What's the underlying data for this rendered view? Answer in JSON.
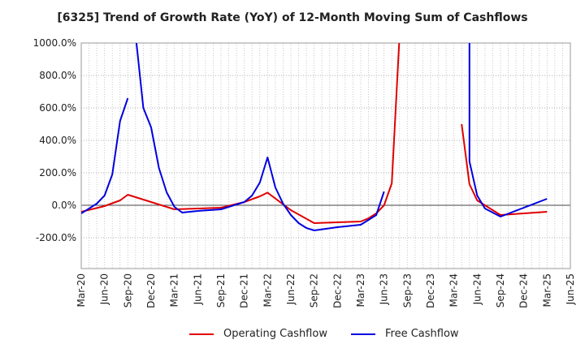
{
  "chart_data": {
    "type": "line",
    "title": "[6325]  Trend of Growth Rate (YoY) of 12-Month Moving Sum of Cashflows",
    "y_ticks": [
      "1000.0%",
      "800.0%",
      "600.0%",
      "400.0%",
      "200.0%",
      "0.0%",
      "-200.0%"
    ],
    "y_tick_values": [
      1000,
      800,
      600,
      400,
      200,
      0,
      -200
    ],
    "ylim": [
      -390,
      1000
    ],
    "x_ticks": [
      "Mar-20",
      "Jun-20",
      "Sep-20",
      "Dec-20",
      "Mar-21",
      "Jun-21",
      "Sep-21",
      "Dec-21",
      "Mar-22",
      "Jun-22",
      "Sep-22",
      "Dec-22",
      "Mar-23",
      "Jun-23",
      "Sep-23",
      "Dec-23",
      "Mar-24",
      "Jun-24",
      "Sep-24",
      "Dec-24",
      "Mar-25",
      "Jun-25"
    ],
    "x_range": [
      "2020-03",
      "2025-06"
    ],
    "grid": true,
    "legend_position": "bottom",
    "series": [
      {
        "name": "Operating Cashflow",
        "color": "#e00000",
        "points": [
          [
            "2020-03",
            -40
          ],
          [
            "2020-06",
            -5
          ],
          [
            "2020-08",
            30
          ],
          [
            "2020-09",
            65
          ],
          [
            "2020-12",
            20
          ],
          [
            "2021-03",
            -25
          ],
          [
            "2021-06",
            -20
          ],
          [
            "2021-09",
            -15
          ],
          [
            "2021-12",
            20
          ],
          [
            "2022-02",
            55
          ],
          [
            "2022-03",
            78
          ],
          [
            "2022-06",
            -30
          ],
          [
            "2022-09",
            -110
          ],
          [
            "2022-12",
            -105
          ],
          [
            "2023-03",
            -100
          ],
          [
            "2023-04",
            -80
          ],
          [
            "2023-05",
            -50
          ],
          [
            "2023-06",
            0
          ],
          [
            "2023-07",
            135
          ],
          [
            "2023-08",
            1050
          ],
          null,
          [
            "2024-04",
            500
          ],
          [
            "2024-05",
            130
          ],
          [
            "2024-06",
            30
          ],
          [
            "2024-09",
            -60
          ],
          [
            "2024-12",
            -50
          ],
          [
            "2025-03",
            -40
          ]
        ]
      },
      {
        "name": "Free Cashflow",
        "color": "#0000e0",
        "points": [
          [
            "2020-03",
            -50
          ],
          [
            "2020-05",
            10
          ],
          [
            "2020-06",
            60
          ],
          [
            "2020-07",
            190
          ],
          [
            "2020-08",
            520
          ],
          [
            "2020-09",
            660
          ],
          null,
          [
            "2020-10",
            1050
          ],
          [
            "2020-11",
            600
          ],
          [
            "2020-12",
            480
          ],
          [
            "2021-01",
            230
          ],
          [
            "2021-02",
            80
          ],
          [
            "2021-03",
            -10
          ],
          [
            "2021-04",
            -45
          ],
          [
            "2021-06",
            -35
          ],
          [
            "2021-09",
            -25
          ],
          [
            "2021-12",
            20
          ],
          [
            "2022-01",
            60
          ],
          [
            "2022-02",
            140
          ],
          [
            "2022-03",
            295
          ],
          [
            "2022-04",
            110
          ],
          [
            "2022-05",
            10
          ],
          [
            "2022-06",
            -60
          ],
          [
            "2022-07",
            -110
          ],
          [
            "2022-08",
            -140
          ],
          [
            "2022-09",
            -155
          ],
          [
            "2022-12",
            -135
          ],
          [
            "2023-03",
            -120
          ],
          [
            "2023-04",
            -90
          ],
          [
            "2023-05",
            -60
          ],
          [
            "2023-06",
            85
          ],
          null,
          [
            "2024-05",
            1050
          ],
          [
            "2024-05",
            270
          ],
          [
            "2024-06",
            60
          ],
          [
            "2024-07",
            -20
          ],
          [
            "2024-09",
            -70
          ],
          [
            "2024-12",
            -15
          ],
          [
            "2025-03",
            40
          ]
        ]
      }
    ]
  }
}
